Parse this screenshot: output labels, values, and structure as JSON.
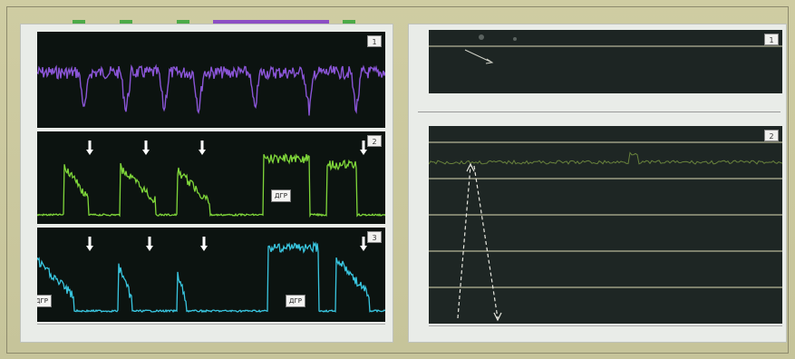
{
  "left_panel": {
    "strips": [
      {
        "badge": "1",
        "color": "#8a55d6"
      },
      {
        "badge": "2",
        "color": "#7fd63a",
        "label": "ДГР"
      },
      {
        "badge": "3",
        "color": "#39c6e0",
        "label": "ДГР"
      }
    ],
    "label_extra": "ДГР",
    "top_markers": [
      {
        "color": "#4caa48"
      },
      {
        "color": "#4caa48"
      },
      {
        "color": "#4caa48"
      },
      {
        "color": "#8c4fc4"
      },
      {
        "color": "#4caa48"
      }
    ]
  },
  "right_panel": {
    "strips": [
      {
        "badge": "1"
      },
      {
        "badge": "2"
      }
    ]
  }
}
